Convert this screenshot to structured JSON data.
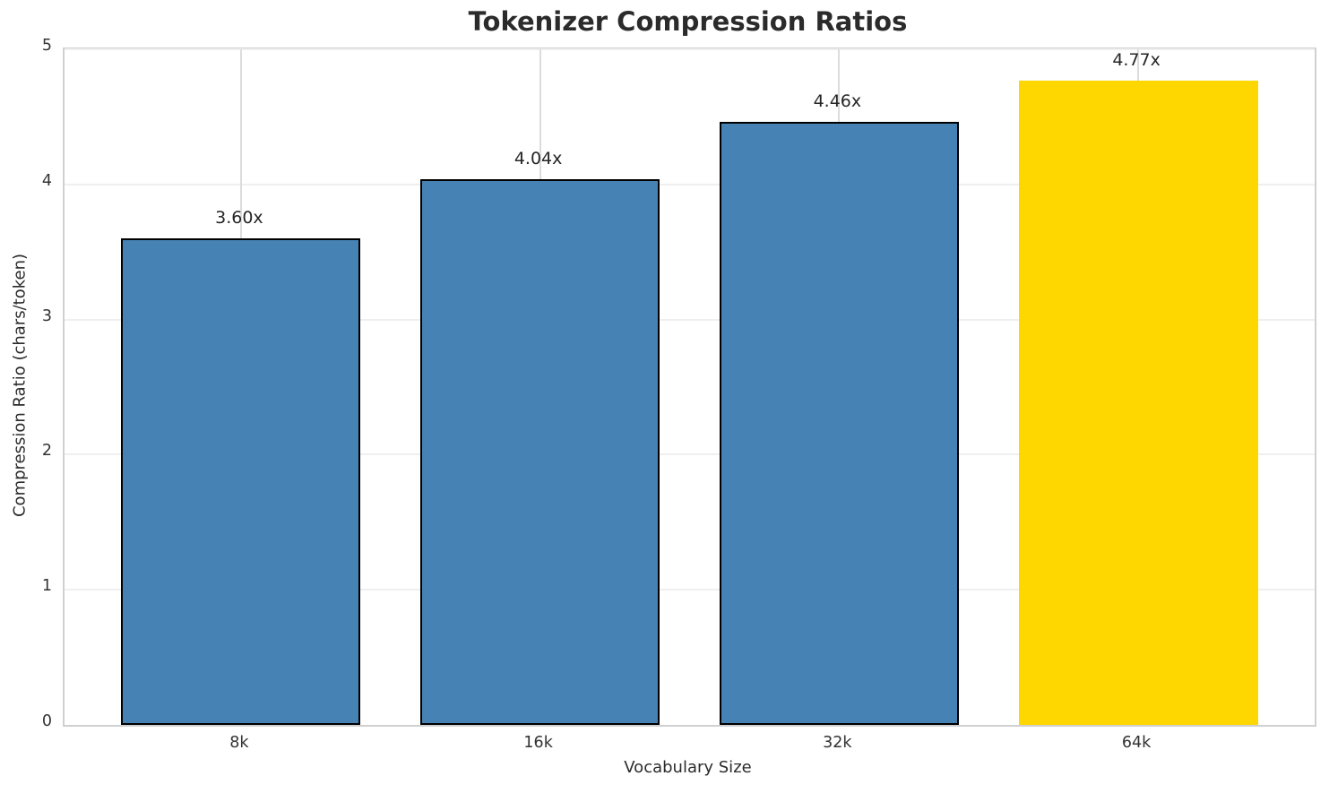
{
  "chart_data": {
    "type": "bar",
    "title": "Tokenizer Compression Ratios",
    "xlabel": "Vocabulary Size",
    "ylabel": "Compression Ratio (chars/token)",
    "categories": [
      "8k",
      "16k",
      "32k",
      "64k"
    ],
    "values": [
      3.6,
      4.04,
      4.46,
      4.77
    ],
    "bar_labels": [
      "3.60x",
      "4.04x",
      "4.46x",
      "4.77x"
    ],
    "ylim": [
      0,
      5
    ],
    "yticks": [
      0,
      1,
      2,
      3,
      4,
      5
    ],
    "xlim": [
      -0.59,
      3.59
    ],
    "bar_width": 0.8,
    "grid": true,
    "legend": "none",
    "colors": {
      "bars": [
        "#4682B4",
        "#4682B4",
        "#4682B4",
        "#FFD700"
      ],
      "bar_edge": "#000000",
      "grid_horizontal": "#efefef",
      "grid_vertical": "#dcdcdc",
      "spine": "#d0d0d0",
      "text": "#262626",
      "background": "#ffffff"
    },
    "bar_edge_widths": [
      2,
      2,
      2,
      0
    ]
  }
}
